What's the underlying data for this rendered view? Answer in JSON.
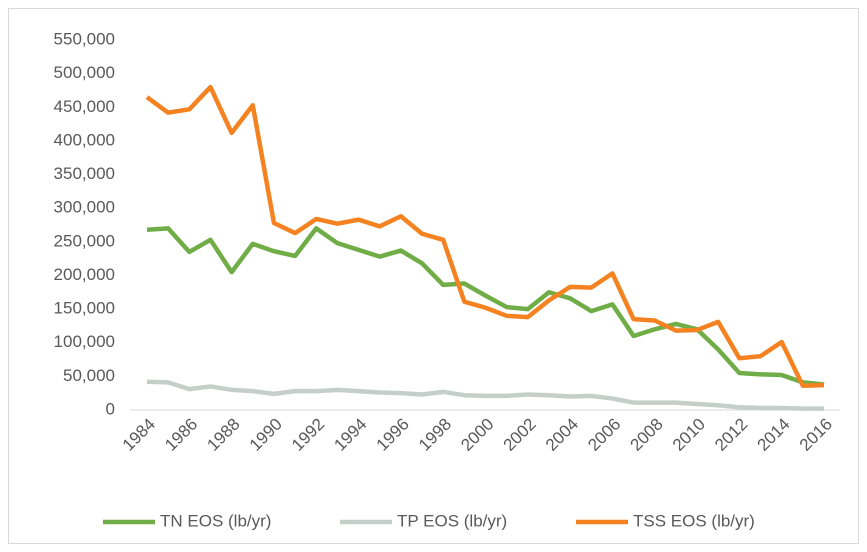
{
  "chart_data": {
    "type": "line",
    "x": [
      1984,
      1985,
      1986,
      1987,
      1988,
      1989,
      1990,
      1991,
      1992,
      1993,
      1994,
      1995,
      1996,
      1997,
      1998,
      1999,
      2000,
      2001,
      2002,
      2003,
      2004,
      2005,
      2006,
      2007,
      2008,
      2009,
      2010,
      2011,
      2012,
      2013,
      2014,
      2015,
      2016
    ],
    "xlim": [
      1984,
      2016
    ],
    "xticks": [
      1984,
      1986,
      1988,
      1990,
      1992,
      1994,
      1996,
      1998,
      2000,
      2002,
      2004,
      2006,
      2008,
      2010,
      2012,
      2014,
      2016
    ],
    "ylim": [
      0,
      550000
    ],
    "yticks": [
      0,
      {
        "value": 50000,
        "label": "50,000"
      },
      {
        "value": 100000,
        "label": "100,000"
      },
      {
        "value": 150000,
        "label": "150,000"
      },
      {
        "value": 200000,
        "label": "200,000"
      },
      {
        "value": 250000,
        "label": "250,000"
      },
      {
        "value": 300000,
        "label": "300,000"
      },
      {
        "value": 350000,
        "label": "350,000"
      },
      {
        "value": 400000,
        "label": "400,000"
      },
      {
        "value": 450000,
        "label": "450,000"
      },
      {
        "value": 500000,
        "label": "500,000"
      },
      {
        "value": 550000,
        "label": "550,000"
      }
    ],
    "legend": "bottom",
    "series": [
      {
        "name": "TN EOS (lb/yr)",
        "color": "#70ad47",
        "values": [
          268000,
          270000,
          235000,
          253000,
          205000,
          247000,
          236000,
          229000,
          270000,
          248000,
          238000,
          228000,
          237000,
          218000,
          186000,
          188000,
          170000,
          153000,
          150000,
          175000,
          166000,
          147000,
          157000,
          110000,
          120000,
          128000,
          120000,
          90000,
          55000,
          53000,
          52000,
          41000,
          38000
        ]
      },
      {
        "name": "TP EOS (lb/yr)",
        "color": "#c5cfca",
        "values": [
          42000,
          41000,
          31000,
          35000,
          30000,
          28000,
          24000,
          28000,
          28000,
          30000,
          28000,
          26000,
          25000,
          23000,
          27000,
          22000,
          21000,
          21000,
          23000,
          22000,
          20000,
          21000,
          17000,
          11000,
          11000,
          11000,
          9000,
          7000,
          4000,
          3000,
          3000,
          2000,
          2000
        ]
      },
      {
        "name": "TSS EOS (lb/yr)",
        "color": "#f58220",
        "values": [
          465000,
          442000,
          447000,
          480000,
          412000,
          453000,
          278000,
          263000,
          284000,
          277000,
          283000,
          273000,
          288000,
          262000,
          253000,
          161000,
          152000,
          140000,
          138000,
          163000,
          183000,
          182000,
          203000,
          135000,
          133000,
          118000,
          119000,
          131000,
          77000,
          80000,
          101000,
          36000,
          37000
        ]
      }
    ]
  }
}
